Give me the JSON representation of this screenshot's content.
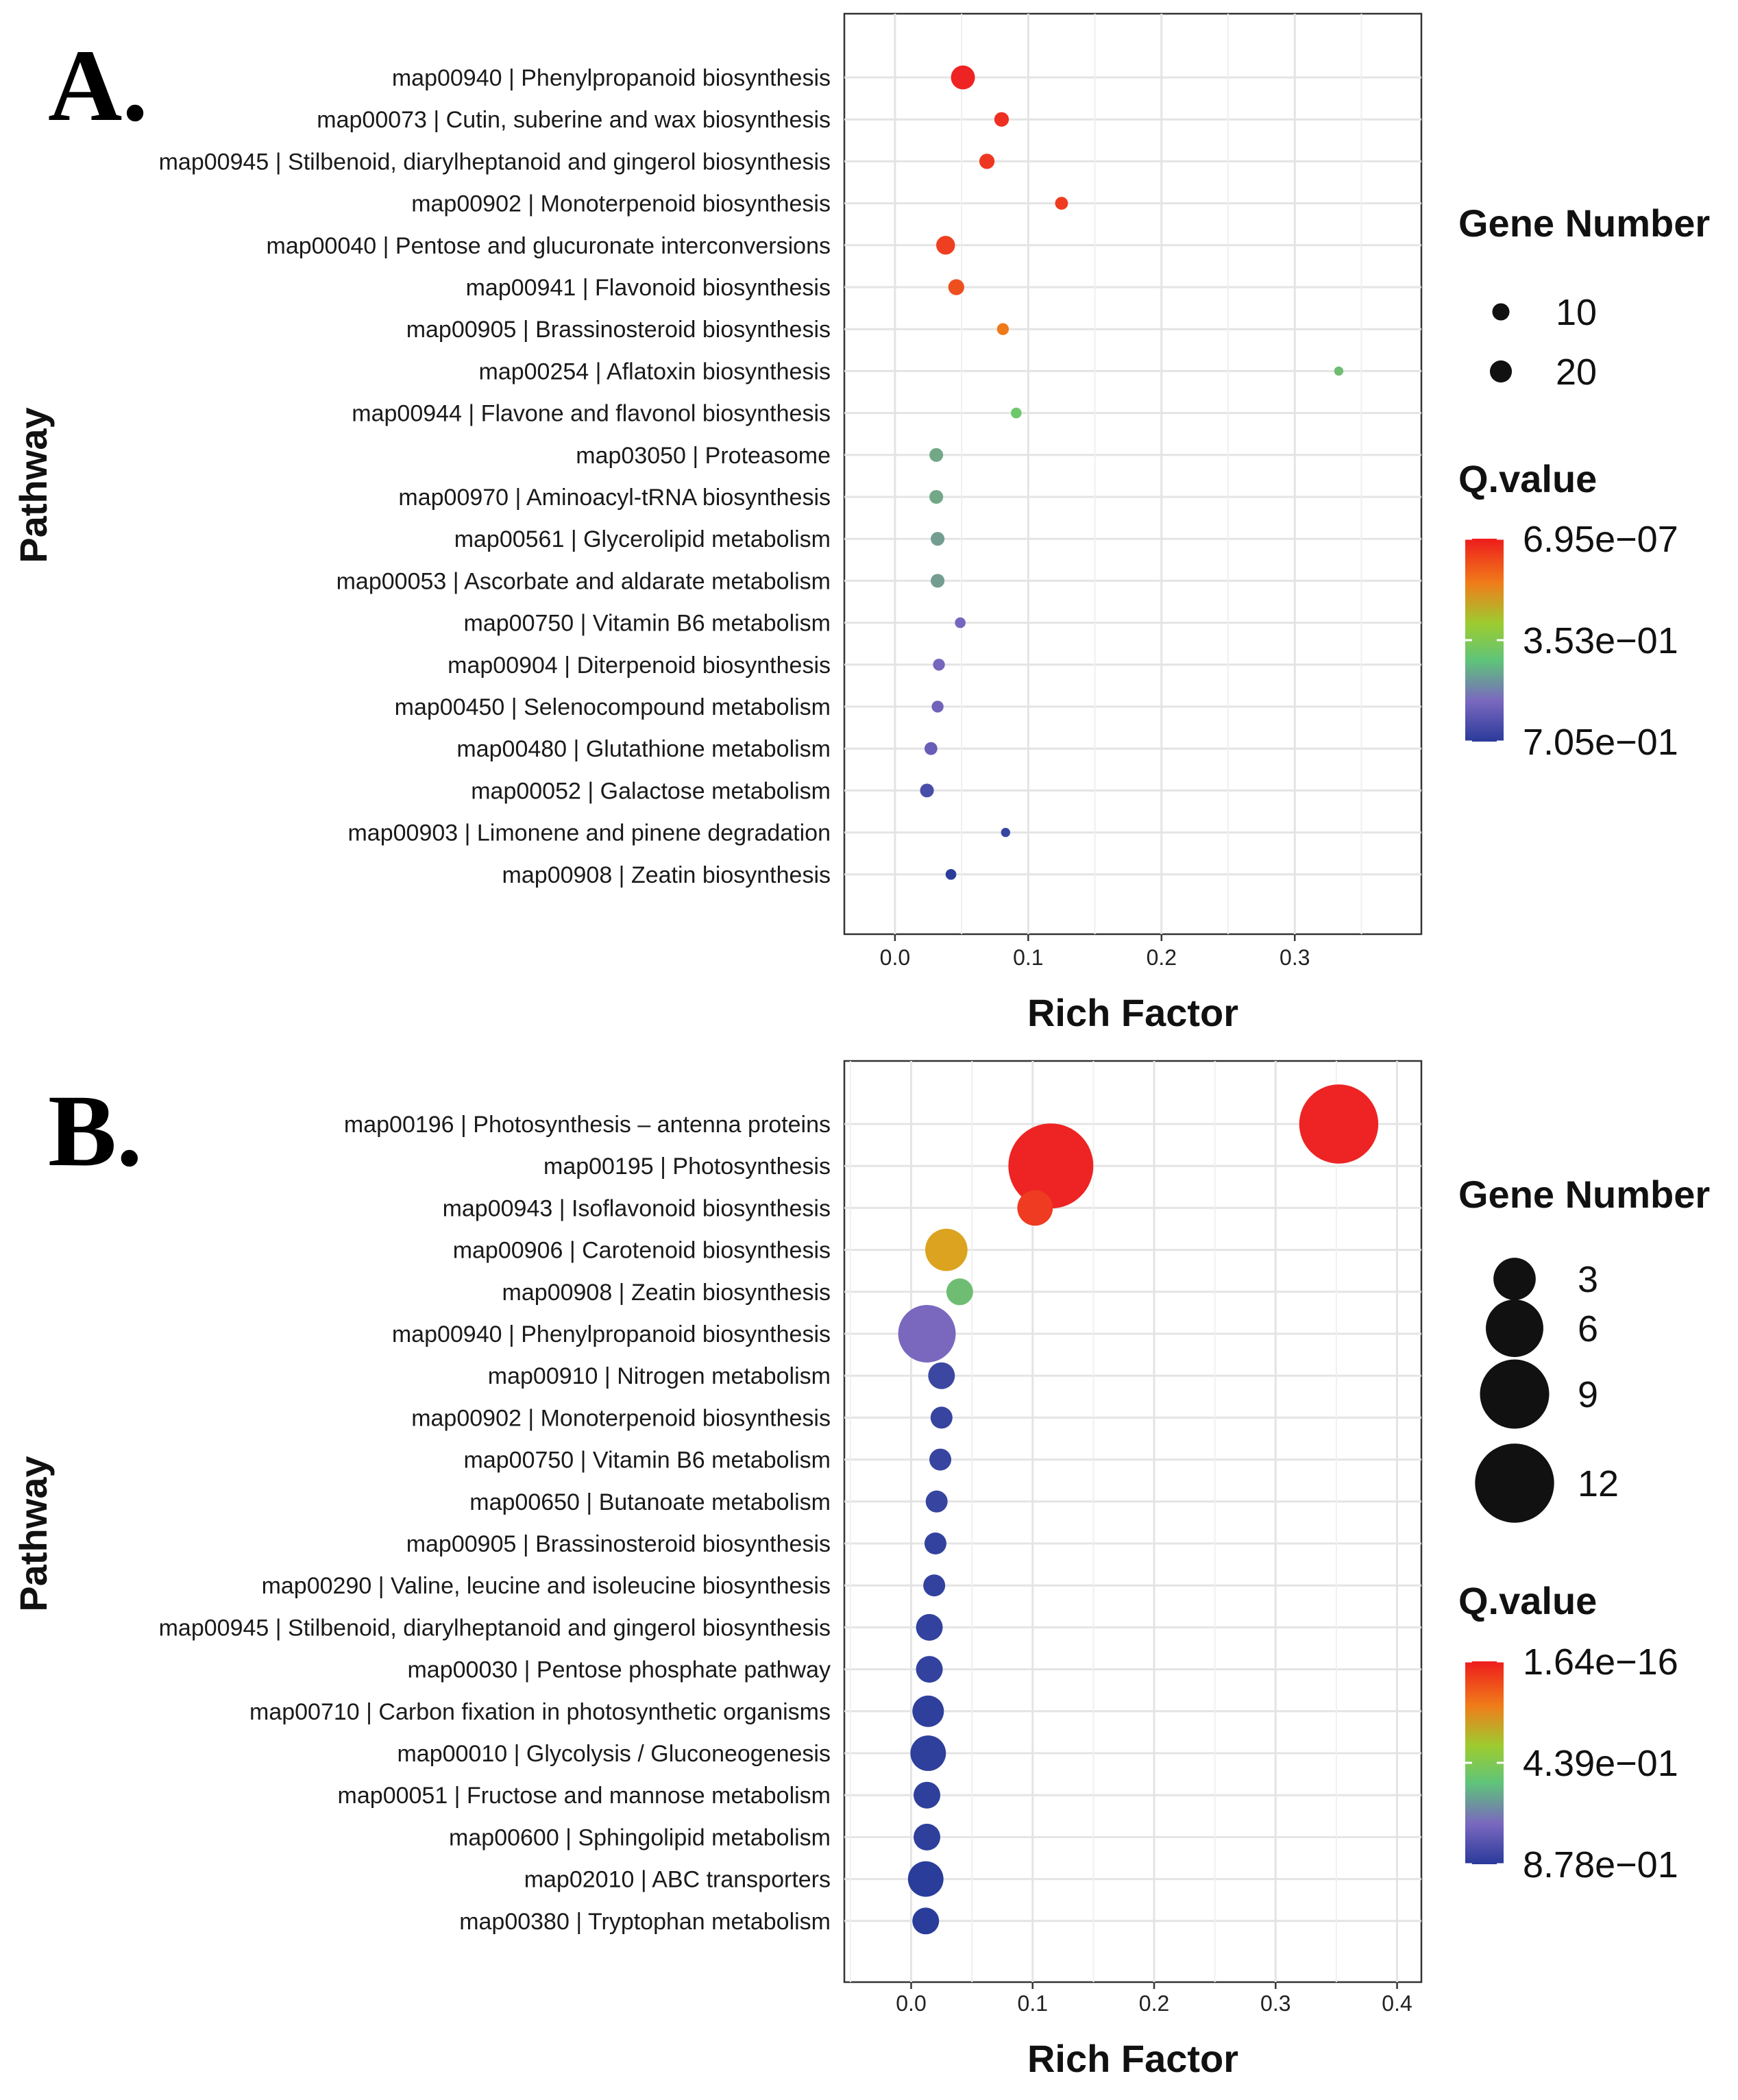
{
  "chart_data": [
    {
      "panel": "A.",
      "type": "scatter",
      "xlabel": "Rich Factor",
      "ylabel": "Pathway",
      "xlim": [
        -0.038,
        0.395
      ],
      "xticks": [
        "0.0",
        "0.1",
        "0.2",
        "0.3"
      ],
      "xtick_values": [
        0.0,
        0.1,
        0.2,
        0.3
      ],
      "size_legend": {
        "title": "Gene Number",
        "values": [
          10,
          20
        ],
        "labels": [
          "10",
          "20"
        ]
      },
      "color_legend": {
        "title": "Q.value",
        "labels": [
          "6.95e−07",
          "3.53e−01",
          "7.05e−01"
        ]
      },
      "colors": {
        "low_q": "#ee2323",
        "mid_q": "#6ec86a",
        "high_q": "#2a3d9a"
      },
      "points": [
        {
          "pathway": "map00940 | Phenylpropanoid biosynthesis",
          "rich_factor": 0.051,
          "gene_number": 25,
          "q_rank": 0.0
        },
        {
          "pathway": "map00073 | Cutin, suberine and wax biosynthesis",
          "rich_factor": 0.08,
          "gene_number": 6,
          "q_rank": 0.03
        },
        {
          "pathway": "map00945 | Stilbenoid, diarylheptanoid and gingerol biosynthesis",
          "rich_factor": 0.069,
          "gene_number": 7,
          "q_rank": 0.05
        },
        {
          "pathway": "map00902 | Monoterpenoid biosynthesis",
          "rich_factor": 0.125,
          "gene_number": 4,
          "q_rank": 0.06
        },
        {
          "pathway": "map00040 | Pentose and glucuronate interconversions",
          "rich_factor": 0.038,
          "gene_number": 13,
          "q_rank": 0.07
        },
        {
          "pathway": "map00941 | Flavonoid biosynthesis",
          "rich_factor": 0.046,
          "gene_number": 8,
          "q_rank": 0.11
        },
        {
          "pathway": "map00905 | Brassinosteroid biosynthesis",
          "rich_factor": 0.081,
          "gene_number": 3,
          "q_rank": 0.22
        },
        {
          "pathway": "map00254 | Aflatoxin biosynthesis",
          "rich_factor": 0.333,
          "gene_number": 1,
          "q_rank": 0.58
        },
        {
          "pathway": "map00944 | Flavone and flavonol biosynthesis",
          "rich_factor": 0.091,
          "gene_number": 2,
          "q_rank": 0.55
        },
        {
          "pathway": "map03050 | Proteasome",
          "rich_factor": 0.031,
          "gene_number": 5,
          "q_rank": 0.64
        },
        {
          "pathway": "map00970 | Aminoacyl-tRNA biosynthesis",
          "rich_factor": 0.031,
          "gene_number": 5,
          "q_rank": 0.64
        },
        {
          "pathway": "map00561 | Glycerolipid metabolism",
          "rich_factor": 0.032,
          "gene_number": 5,
          "q_rank": 0.67
        },
        {
          "pathway": "map00053 | Ascorbate and aldarate metabolism",
          "rich_factor": 0.032,
          "gene_number": 5,
          "q_rank": 0.67
        },
        {
          "pathway": "map00750 | Vitamin B6 metabolism",
          "rich_factor": 0.049,
          "gene_number": 2,
          "q_rank": 0.83
        },
        {
          "pathway": "map00904 | Diterpenoid biosynthesis",
          "rich_factor": 0.033,
          "gene_number": 3,
          "q_rank": 0.83
        },
        {
          "pathway": "map00450 | Selenocompound metabolism",
          "rich_factor": 0.032,
          "gene_number": 3,
          "q_rank": 0.84
        },
        {
          "pathway": "map00480 | Glutathione metabolism",
          "rich_factor": 0.027,
          "gene_number": 4,
          "q_rank": 0.86
        },
        {
          "pathway": "map00052 | Galactose metabolism",
          "rich_factor": 0.024,
          "gene_number": 5,
          "q_rank": 0.93
        },
        {
          "pathway": "map00903 | Limonene and pinene degradation",
          "rich_factor": 0.083,
          "gene_number": 1,
          "q_rank": 0.97
        },
        {
          "pathway": "map00908 | Zeatin biosynthesis",
          "rich_factor": 0.042,
          "gene_number": 2,
          "q_rank": 1.0
        }
      ]
    },
    {
      "panel": "B.",
      "type": "scatter",
      "xlabel": "Rich Factor",
      "ylabel": "Pathway",
      "xlim": [
        -0.055,
        0.42
      ],
      "xticks": [
        "0.0",
        "0.1",
        "0.2",
        "0.3",
        "0.4"
      ],
      "xtick_values": [
        0.0,
        0.1,
        0.2,
        0.3,
        0.4
      ],
      "size_legend": {
        "title": "Gene Number",
        "values": [
          3,
          6,
          9,
          12
        ],
        "labels": [
          "3",
          "6",
          "9",
          "12"
        ]
      },
      "color_legend": {
        "title": "Q.value",
        "labels": [
          "1.64e−16",
          "4.39e−01",
          "8.78e−01"
        ]
      },
      "colors": {
        "low_q": "#ee2323",
        "mid_q": "#6ec86a",
        "high_q": "#2a3d9a"
      },
      "points": [
        {
          "pathway": "map00196 | Photosynthesis – antenna proteins",
          "rich_factor": 0.352,
          "gene_number": 12,
          "q_rank": 0.0
        },
        {
          "pathway": "map00195 | Photosynthesis",
          "rich_factor": 0.115,
          "gene_number": 14,
          "q_rank": 0.0
        },
        {
          "pathway": "map00943 | Isoflavonoid biosynthesis",
          "rich_factor": 0.102,
          "gene_number": 2,
          "q_rank": 0.06
        },
        {
          "pathway": "map00906 | Carotenoid biosynthesis",
          "rich_factor": 0.029,
          "gene_number": 3,
          "q_rank": 0.28
        },
        {
          "pathway": "map00908 | Zeatin biosynthesis",
          "rich_factor": 0.04,
          "gene_number": 1,
          "q_rank": 0.58
        },
        {
          "pathway": "map00940 | Phenylpropanoid biosynthesis",
          "rich_factor": 0.013,
          "gene_number": 6,
          "q_rank": 0.82
        },
        {
          "pathway": "map00910 | Nitrogen metabolism",
          "rich_factor": 0.025,
          "gene_number": 1,
          "q_rank": 0.96
        },
        {
          "pathway": "map00902 | Monoterpenoid biosynthesis",
          "rich_factor": 0.025,
          "gene_number": 0.6,
          "q_rank": 0.97
        },
        {
          "pathway": "map00750 | Vitamin B6 metabolism",
          "rich_factor": 0.024,
          "gene_number": 0.6,
          "q_rank": 0.97
        },
        {
          "pathway": "map00650 | Butanoate metabolism",
          "rich_factor": 0.021,
          "gene_number": 0.6,
          "q_rank": 0.97
        },
        {
          "pathway": "map00905 | Brassinosteroid biosynthesis",
          "rich_factor": 0.02,
          "gene_number": 0.6,
          "q_rank": 0.98
        },
        {
          "pathway": "map00290 | Valine, leucine and isoleucine biosynthesis",
          "rich_factor": 0.019,
          "gene_number": 0.6,
          "q_rank": 0.98
        },
        {
          "pathway": "map00945 | Stilbenoid, diarylheptanoid and gingerol biosynthesis",
          "rich_factor": 0.015,
          "gene_number": 1,
          "q_rank": 0.98
        },
        {
          "pathway": "map00030 | Pentose phosphate pathway",
          "rich_factor": 0.015,
          "gene_number": 1,
          "q_rank": 0.98
        },
        {
          "pathway": "map00710 | Carbon fixation in photosynthetic organisms",
          "rich_factor": 0.014,
          "gene_number": 1.5,
          "q_rank": 0.99
        },
        {
          "pathway": "map00010 | Glycolysis / Gluconeogenesis",
          "rich_factor": 0.014,
          "gene_number": 2,
          "q_rank": 0.99
        },
        {
          "pathway": "map00051 | Fructose and mannose metabolism",
          "rich_factor": 0.013,
          "gene_number": 1,
          "q_rank": 0.99
        },
        {
          "pathway": "map00600 | Sphingolipid metabolism",
          "rich_factor": 0.013,
          "gene_number": 1,
          "q_rank": 0.99
        },
        {
          "pathway": "map02010 | ABC transporters",
          "rich_factor": 0.012,
          "gene_number": 2,
          "q_rank": 1.0
        },
        {
          "pathway": "map00380 | Tryptophan metabolism",
          "rich_factor": 0.012,
          "gene_number": 1,
          "q_rank": 1.0
        }
      ]
    }
  ]
}
